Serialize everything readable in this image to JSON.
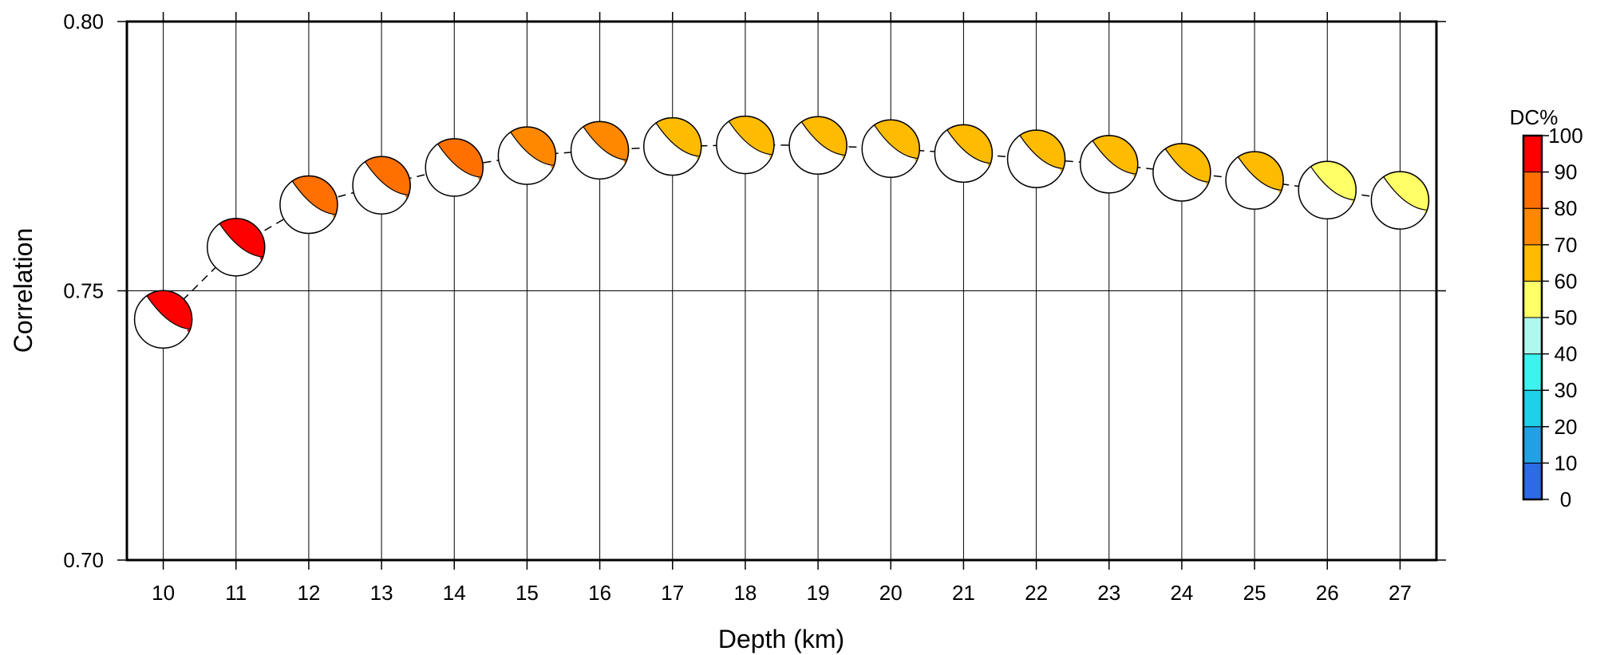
{
  "chart_data": {
    "type": "scatter",
    "title": "",
    "xlabel": "Depth (km)",
    "ylabel": "Correlation",
    "xlim": [
      9.5,
      27.5
    ],
    "ylim": [
      0.7,
      0.8
    ],
    "x_ticks": [
      "10",
      "11",
      "12",
      "13",
      "14",
      "15",
      "16",
      "17",
      "18",
      "19",
      "20",
      "21",
      "22",
      "23",
      "24",
      "25",
      "26",
      "27"
    ],
    "y_ticks": [
      "0.70",
      "0.75",
      "0.80"
    ],
    "grid": "vertical lines at each depth; horizontal line at 0.75",
    "connector": "dashed line",
    "marker": "focal mechanism beachball colored by DC%",
    "series": [
      {
        "x": [
          10,
          11,
          12,
          13,
          14,
          15,
          16,
          17,
          18,
          19,
          20,
          21,
          22,
          23,
          24,
          25,
          26,
          27
        ],
        "y": [
          0.7447,
          0.7581,
          0.766,
          0.7696,
          0.7729,
          0.7751,
          0.7761,
          0.7768,
          0.7771,
          0.777,
          0.7764,
          0.7755,
          0.7745,
          0.7735,
          0.772,
          0.7705,
          0.7687,
          0.7668
        ],
        "dc_percent": [
          95,
          93,
          82,
          81,
          80,
          78,
          77,
          67,
          66,
          65,
          64,
          63,
          62,
          62,
          61,
          61,
          55,
          54
        ]
      }
    ],
    "colorbar": {
      "title": "DC%",
      "ticks": [
        "0",
        "10",
        "20",
        "30",
        "40",
        "50",
        "60",
        "70",
        "80",
        "90",
        "100"
      ],
      "colors": [
        "#2c6ae8",
        "#21a1e3",
        "#1fd1e8",
        "#3cf3ef",
        "#aff8ef",
        "#ffff66",
        "#ffbb00",
        "#ff8800",
        "#ff7000",
        "#ff0000"
      ]
    }
  }
}
